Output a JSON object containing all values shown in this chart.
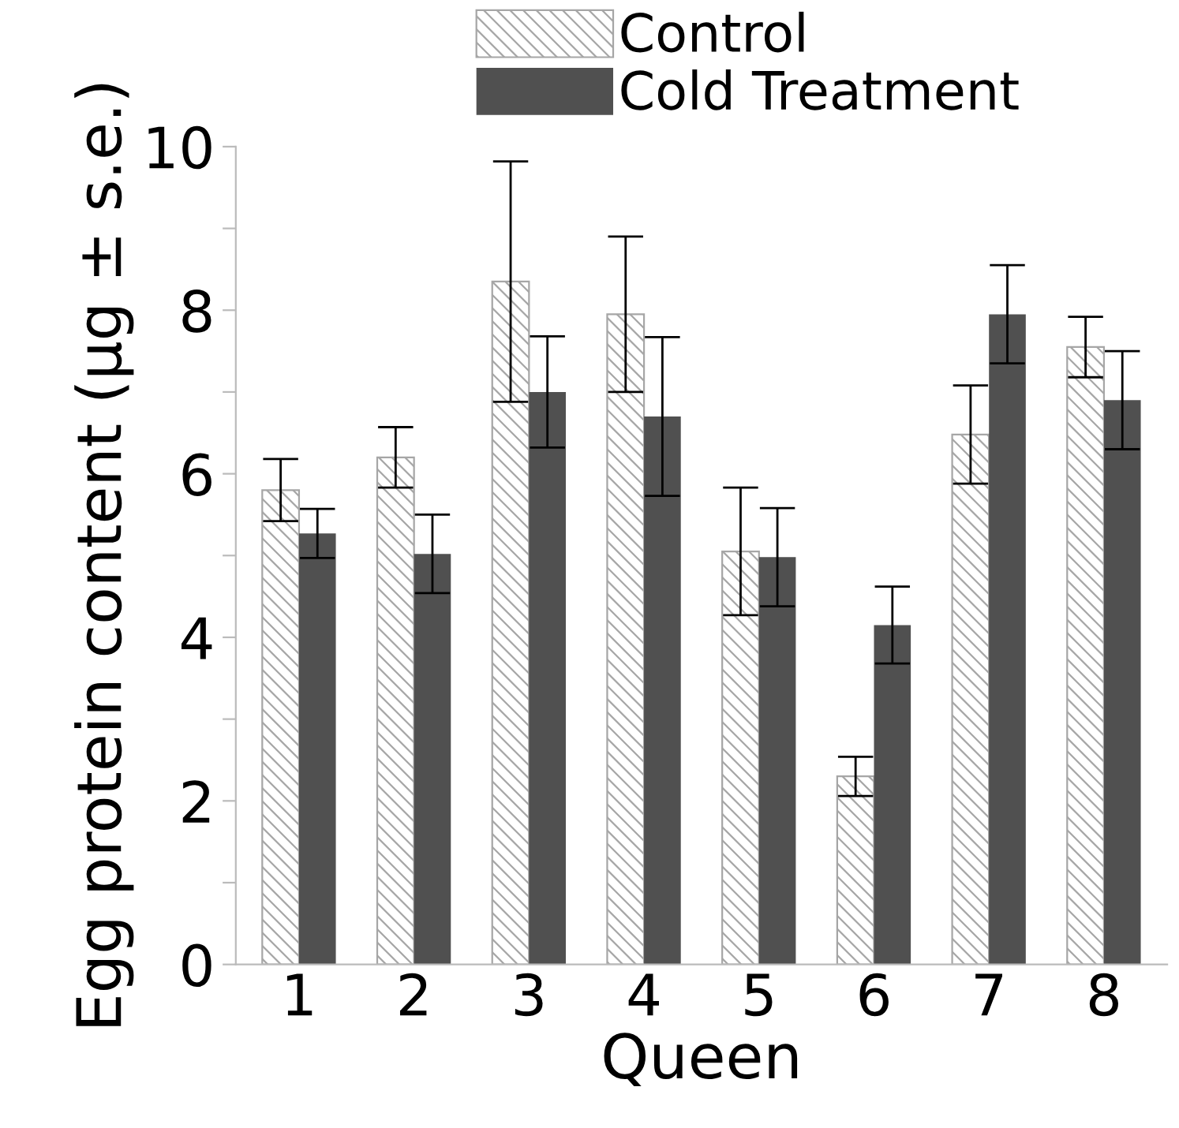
{
  "chart_data": {
    "type": "bar",
    "xlabel": "Queen",
    "ylabel": "Egg protein content (μg ± s.e.)",
    "categories": [
      "1",
      "2",
      "3",
      "4",
      "5",
      "6",
      "7",
      "8"
    ],
    "series": [
      {
        "name": "Control",
        "color": "#a6a6a6",
        "values": [
          5.8,
          6.2,
          8.35,
          7.95,
          5.05,
          2.3,
          6.48,
          7.55
        ],
        "errors": [
          0.38,
          0.37,
          1.47,
          0.95,
          0.78,
          0.24,
          0.6,
          0.37
        ]
      },
      {
        "name": "Cold Treatment",
        "color": "#505050",
        "values": [
          5.27,
          5.02,
          7.0,
          6.7,
          4.98,
          4.15,
          7.95,
          6.9
        ],
        "errors": [
          0.3,
          0.48,
          0.68,
          0.97,
          0.6,
          0.47,
          0.6,
          0.6
        ]
      }
    ],
    "ylim": [
      0,
      10
    ],
    "yticks": [
      0,
      {
        "value": 1,
        "label": null
      },
      2,
      {
        "value": 3,
        "label": null
      },
      4,
      {
        "value": 5,
        "label": null
      },
      6,
      {
        "value": 7,
        "label": null
      },
      8,
      {
        "value": 9,
        "label": null
      },
      10
    ],
    "grid": false,
    "legend": "top"
  }
}
